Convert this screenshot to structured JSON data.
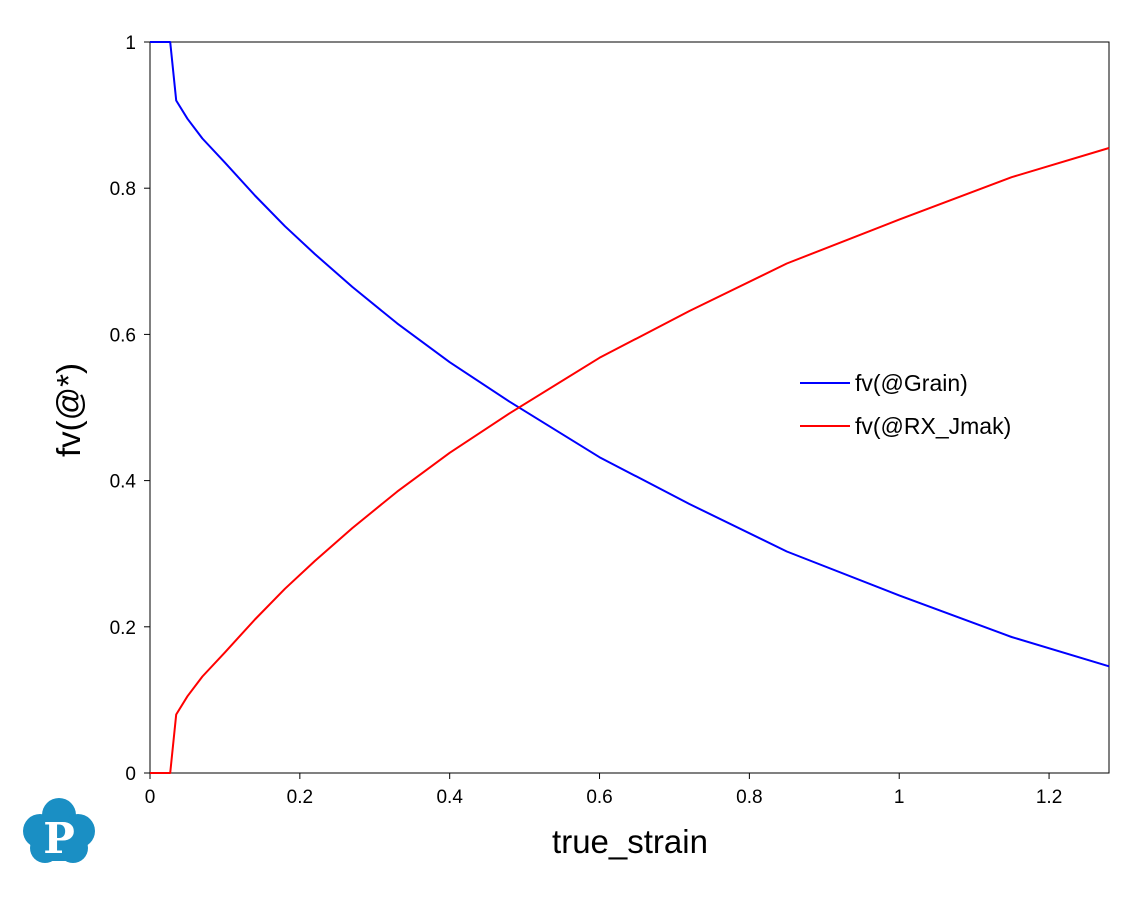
{
  "chart_data": {
    "type": "line",
    "xlabel": "true_strain",
    "ylabel": "fv(@*)",
    "xlim": [
      0,
      1.28
    ],
    "ylim": [
      0,
      1
    ],
    "xticks": [
      "0",
      "0.2",
      "0.4",
      "0.6",
      "0.8",
      "1",
      "1.2"
    ],
    "yticks": [
      "0",
      "0.2",
      "0.4",
      "0.6",
      "0.8",
      "1"
    ],
    "grid": false,
    "legend_position": "right-center",
    "series": [
      {
        "name": "fv(@Grain)",
        "color": "#0000ff",
        "x": [
          0,
          0.027,
          0.035,
          0.05,
          0.07,
          0.1,
          0.14,
          0.18,
          0.22,
          0.27,
          0.33,
          0.4,
          0.48,
          0.6,
          0.72,
          0.85,
          1.0,
          1.15,
          1.28
        ],
        "y": [
          1.0,
          1.0,
          0.92,
          0.895,
          0.868,
          0.835,
          0.79,
          0.748,
          0.71,
          0.665,
          0.615,
          0.562,
          0.508,
          0.432,
          0.368,
          0.303,
          0.243,
          0.186,
          0.146
        ]
      },
      {
        "name": "fv(@RX_Jmak)",
        "color": "#ff0000",
        "x": [
          0,
          0.027,
          0.035,
          0.05,
          0.07,
          0.1,
          0.14,
          0.18,
          0.22,
          0.27,
          0.33,
          0.4,
          0.48,
          0.6,
          0.72,
          0.85,
          1.0,
          1.15,
          1.28
        ],
        "y": [
          0,
          0,
          0.08,
          0.105,
          0.132,
          0.165,
          0.21,
          0.252,
          0.29,
          0.335,
          0.385,
          0.438,
          0.492,
          0.568,
          0.632,
          0.697,
          0.757,
          0.815,
          0.855
        ]
      }
    ]
  },
  "logo": {
    "letter": "P",
    "color": "#1a8fc4"
  }
}
